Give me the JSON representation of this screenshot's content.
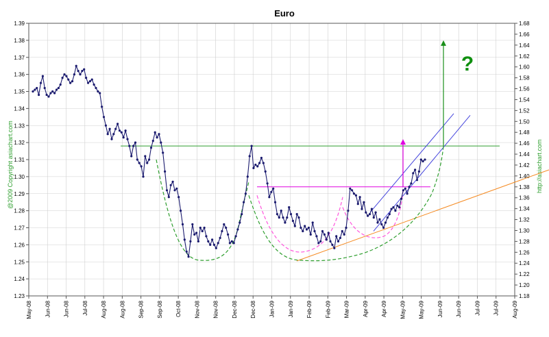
{
  "chart_data": {
    "type": "line",
    "title": "Euro",
    "copyright_label": "@2009 Copyright asiachart.com",
    "url_label": "http://asiachart.com",
    "annotation_symbol": "?",
    "x_tick_labels": [
      "May-08",
      "Jun-08",
      "Jun-08",
      "Jul-08",
      "Aug-08",
      "Aug-08",
      "Sep-08",
      "Sep-08",
      "Oct-08",
      "Nov-08",
      "Nov-08",
      "Dec-08",
      "Dec-08",
      "Jan-09",
      "Jan-09",
      "Feb-09",
      "Feb-09",
      "Mar-09",
      "Apr-09",
      "Apr-09",
      "May-09",
      "May-09",
      "Jun-09",
      "Jun-09",
      "Jul-09",
      "Jul-09",
      "Aug-09"
    ],
    "y_left_ticks": [
      "1.23",
      "1.24",
      "1.25",
      "1.26",
      "1.27",
      "1.28",
      "1.29",
      "1.30",
      "1.31",
      "1.32",
      "1.33",
      "1.34",
      "1.35",
      "1.36",
      "1.37",
      "1.38",
      "1.39"
    ],
    "y_right_ticks": [
      "1.18",
      "1.20",
      "1.22",
      "1.24",
      "1.26",
      "1.28",
      "1.30",
      "1.32",
      "1.34",
      "1.36",
      "1.38",
      "1.40",
      "1.42",
      "1.44",
      "1.46",
      "1.48",
      "1.50",
      "1.52",
      "1.54",
      "1.56",
      "1.58",
      "1.60",
      "1.62",
      "1.64",
      "1.66",
      "1.68"
    ],
    "ylim_left": [
      1.23,
      1.39
    ],
    "ylim_right": [
      1.18,
      1.68
    ],
    "grid": true,
    "colors": {
      "price": "#1a1a6e",
      "green": "#2e9e2e",
      "magenta": "#e000e0",
      "magenta_dash": "#ff55dd",
      "blue_channel": "#4444dd",
      "orange": "#f5891f",
      "grid": "#cfcfcf"
    },
    "series": [
      {
        "values": [
          1.35,
          1.351,
          1.352,
          1.348,
          1.355,
          1.359,
          1.352,
          1.348,
          1.347,
          1.349,
          1.35,
          1.349,
          1.351,
          1.352,
          1.354,
          1.358,
          1.36,
          1.359,
          1.357,
          1.355,
          1.356,
          1.36,
          1.365,
          1.362,
          1.36,
          1.362,
          1.363,
          1.358,
          1.355,
          1.356,
          1.357,
          1.354,
          1.352,
          1.35,
          1.349,
          1.341,
          1.335,
          1.33,
          1.325,
          1.328,
          1.322,
          1.325,
          1.328,
          1.331,
          1.327,
          1.326,
          1.323,
          1.327,
          1.322,
          1.318,
          1.312,
          1.318,
          1.32,
          1.31,
          1.308,
          1.306,
          1.3,
          1.312,
          1.308,
          1.31,
          1.317,
          1.321,
          1.326,
          1.323,
          1.325,
          1.32,
          1.314,
          1.303,
          1.292,
          1.288,
          1.295,
          1.297,
          1.292,
          1.293,
          1.288,
          1.28,
          1.272,
          1.263,
          1.256,
          1.253,
          1.262,
          1.272,
          1.266,
          1.267,
          1.262,
          1.27,
          1.268,
          1.27,
          1.265,
          1.262,
          1.26,
          1.263,
          1.26,
          1.258,
          1.261,
          1.264,
          1.268,
          1.272,
          1.27,
          1.266,
          1.261,
          1.262,
          1.261,
          1.265,
          1.269,
          1.273,
          1.278,
          1.285,
          1.29,
          1.3,
          1.312,
          1.318,
          1.305,
          1.307,
          1.306,
          1.308,
          1.311,
          1.308,
          1.303,
          1.296,
          1.288,
          1.291,
          1.293,
          1.285,
          1.278,
          1.276,
          1.28,
          1.276,
          1.273,
          1.276,
          1.282,
          1.278,
          1.274,
          1.271,
          1.278,
          1.276,
          1.27,
          1.268,
          1.271,
          1.269,
          1.27,
          1.266,
          1.273,
          1.268,
          1.265,
          1.261,
          1.262,
          1.268,
          1.266,
          1.263,
          1.267,
          1.262,
          1.26,
          1.258,
          1.265,
          1.262,
          1.264,
          1.268,
          1.266,
          1.27,
          1.28,
          1.293,
          1.292,
          1.29,
          1.289,
          1.284,
          1.288,
          1.281,
          1.285,
          1.279,
          1.277,
          1.278,
          1.281,
          1.276,
          1.279,
          1.273,
          1.275,
          1.272,
          1.27,
          1.273,
          1.276,
          1.278,
          1.281,
          1.282,
          1.28,
          1.283,
          1.282,
          1.287,
          1.292,
          1.293,
          1.29,
          1.294,
          1.296,
          1.302,
          1.304,
          1.298,
          1.303,
          1.31,
          1.309,
          1.31
        ]
      }
    ],
    "overlays": [
      {
        "name": "green horizontal resistance line",
        "value": 1.318
      },
      {
        "name": "magenta horizontal neckline",
        "value": 1.294
      }
    ]
  }
}
